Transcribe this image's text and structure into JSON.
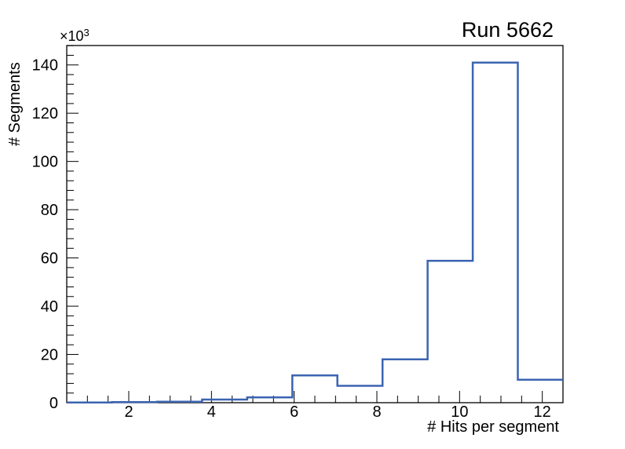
{
  "figure": {
    "title": "Run 5662",
    "xlabel": "# Hits per segment",
    "ylabel": "# Segments",
    "y_axis_multiplier": {
      "base": "×10",
      "exp": "3"
    }
  },
  "chart_data": {
    "type": "histogram-step",
    "title": "Run 5662",
    "xlabel": "# Hits per segment",
    "ylabel": "# Segments",
    "y_values_scale_note": "counts; axis labels shown in units of 10^3",
    "xlim": [
      0.5,
      12.5
    ],
    "ylim": [
      0,
      148050
    ],
    "grid": false,
    "legend": false,
    "bin_edges": [
      0.5,
      1.5909,
      2.6818,
      3.7727,
      4.8636,
      5.9545,
      7.0455,
      8.1364,
      9.2273,
      10.3182,
      11.4091,
      12.5
    ],
    "counts": [
      100,
      250,
      400,
      1300,
      2200,
      11300,
      7000,
      18000,
      58800,
      141000,
      9500
    ],
    "x_major_ticks": [
      2,
      4,
      6,
      8,
      10,
      12
    ],
    "x_major_tick_labels": [
      "2",
      "4",
      "6",
      "8",
      "10",
      "12"
    ],
    "x_minor_step": 0.5,
    "y_major_ticks": [
      0,
      20000,
      40000,
      60000,
      80000,
      100000,
      120000,
      140000
    ],
    "y_major_tick_labels": [
      "0",
      "20",
      "40",
      "60",
      "80",
      "100",
      "120",
      "140"
    ],
    "y_major_step": 20000,
    "y_minor_step": 4000,
    "line_color": "#3c64b1",
    "frame_color": "#000000",
    "background_color": "#ffffff"
  }
}
